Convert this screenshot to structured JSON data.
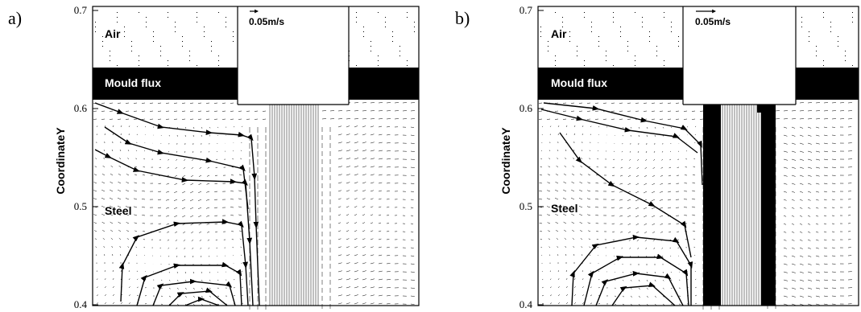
{
  "panels": [
    {
      "letter": "a)",
      "y_ticks": [
        "0.7",
        "0.6",
        "0.5",
        "0.4"
      ],
      "ylabel": "CoordinateY",
      "regions": {
        "air": "Air",
        "flux": "Mould flux",
        "steel": "Steel"
      },
      "scale_label": "0.05m/s"
    },
    {
      "letter": "b)",
      "y_ticks": [
        "0.7",
        "0.6",
        "0.5",
        "0.4"
      ],
      "ylabel": "CoordinateY",
      "regions": {
        "air": "Air",
        "flux": "Mould flux",
        "steel": "Steel"
      },
      "scale_label": "0.05m/s"
    }
  ],
  "colors": {
    "flux": "#000000",
    "background": "#ffffff",
    "vectors": "#000000"
  },
  "icons": {
    "vector_field": "velocity-arrow-field",
    "streamline": "streamline-with-arrowheads"
  }
}
